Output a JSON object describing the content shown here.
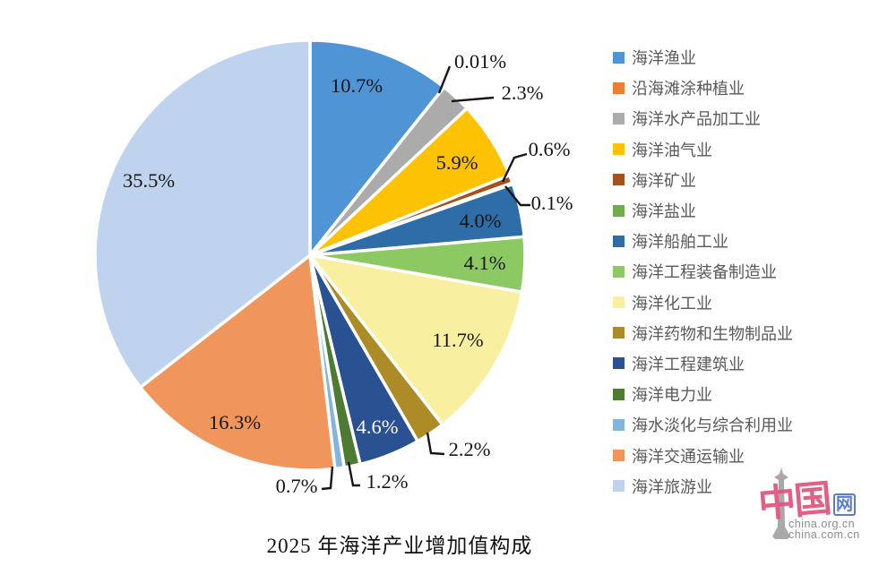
{
  "title": "2025 年海洋产业增加值构成",
  "chart_data": {
    "type": "pie",
    "title": "2025 年海洋产业增加值构成",
    "legend_position": "right",
    "start_angle": "12-oclock",
    "direction": "clockwise",
    "categories": [
      "海洋渔业",
      "沿海滩涂种植业",
      "海洋水产品加工业",
      "海洋油气业",
      "海洋矿业",
      "海洋盐业",
      "海洋船舶工业",
      "海洋工程装备制造业",
      "海洋化工业",
      "海洋药物和生物制品业",
      "海洋工程建筑业",
      "海洋电力业",
      "海水淡化与综合利用业",
      "海洋交通运输业",
      "海洋旅游业"
    ],
    "values": [
      10.7,
      0.01,
      2.3,
      5.9,
      0.6,
      0.1,
      4.0,
      4.1,
      11.7,
      2.2,
      4.6,
      1.2,
      0.7,
      16.3,
      35.5
    ],
    "labels": [
      "10.7%",
      "0.01%",
      "2.3%",
      "5.9%",
      "0.6%",
      "0.1%",
      "4.0%",
      "4.1%",
      "11.7%",
      "2.2%",
      "4.6%",
      "1.2%",
      "0.7%",
      "16.3%",
      "35.5%"
    ],
    "colors": [
      "#4F94D4",
      "#ED7D31",
      "#ABABAB",
      "#FCC203",
      "#A4511D",
      "#6FAE49",
      "#2E6DA8",
      "#8DC963",
      "#F8EFA0",
      "#AD8B26",
      "#2A5191",
      "#4E7B33",
      "#85B5DE",
      "#F0965C",
      "#BFD2EE"
    ]
  },
  "watermark": {
    "logo_cn": "中国",
    "logo_net": "网",
    "domain1": "china.org.cn",
    "domain2": "china.com.cn"
  }
}
